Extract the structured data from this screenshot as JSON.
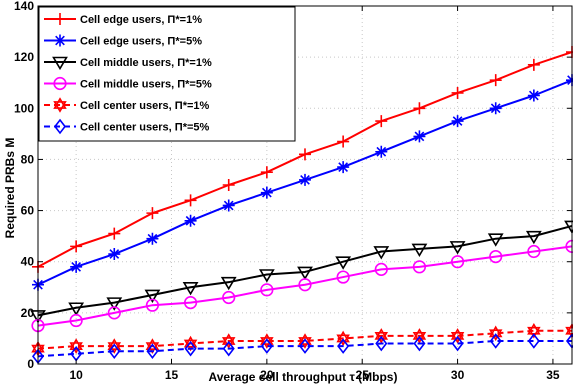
{
  "chart_data": {
    "type": "line",
    "title": "",
    "xlabel": "Average cell throughput τ (Mbps)",
    "ylabel": "Required PRBs M",
    "xlim": [
      8,
      36
    ],
    "ylim": [
      0,
      140
    ],
    "xticks": [
      10,
      15,
      20,
      25,
      30,
      35
    ],
    "yticks": [
      0,
      20,
      40,
      60,
      80,
      100,
      120,
      140
    ],
    "grid": true,
    "legend_position": "top-left",
    "x": [
      8,
      10,
      12,
      14,
      16,
      18,
      20,
      22,
      24,
      26,
      28,
      30,
      32,
      34,
      36
    ],
    "series": [
      {
        "name": "Cell edge users, Π*=1%",
        "color": "#ff0000",
        "dash": "solid",
        "marker": "plus",
        "values": [
          38,
          46,
          51,
          59,
          64,
          70,
          75,
          82,
          87,
          95,
          100,
          106,
          111,
          117,
          122
        ]
      },
      {
        "name": "Cell edge users, Π*=5%",
        "color": "#0000ff",
        "dash": "solid",
        "marker": "asterisk",
        "values": [
          31,
          38,
          43,
          49,
          56,
          62,
          67,
          72,
          77,
          83,
          89,
          95,
          100,
          105,
          111
        ]
      },
      {
        "name": "Cell middle users, Π*=1%",
        "color": "#000000",
        "dash": "solid",
        "marker": "triangle-down",
        "values": [
          19,
          22,
          24,
          27,
          30,
          32,
          35,
          36,
          40,
          44,
          45,
          46,
          49,
          50,
          54
        ]
      },
      {
        "name": "Cell middle users, Π*=5%",
        "color": "#ff00ff",
        "dash": "solid",
        "marker": "circle",
        "values": [
          15,
          17,
          20,
          23,
          24,
          26,
          29,
          31,
          34,
          37,
          38,
          40,
          42,
          44,
          46
        ]
      },
      {
        "name": "Cell center users, Π*=1%",
        "color": "#ff0000",
        "dash": "dashed",
        "marker": "hexagram",
        "values": [
          6,
          7,
          7,
          7,
          8,
          9,
          9,
          9,
          10,
          11,
          11,
          11,
          12,
          13,
          13
        ]
      },
      {
        "name": "Cell center users, Π*=5%",
        "color": "#0000ff",
        "dash": "dashed",
        "marker": "diamond",
        "values": [
          3,
          4,
          5,
          5,
          6,
          6,
          7,
          7,
          7,
          8,
          8,
          8,
          9,
          9,
          9
        ]
      }
    ]
  }
}
